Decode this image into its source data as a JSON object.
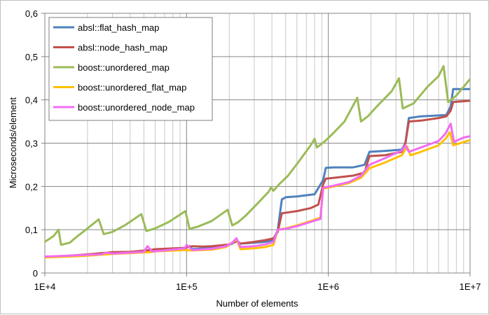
{
  "chart_data": {
    "type": "line",
    "title": "",
    "xlabel": "Number of elements",
    "ylabel": "Microseconds/element",
    "xscale": "log",
    "xlim": [
      10000,
      10000000
    ],
    "ylim": [
      0,
      0.6
    ],
    "grid": true,
    "legend_position": "top-left",
    "x_tick_labels": [
      "1E+4",
      "1E+5",
      "1E+6",
      "1E+7"
    ],
    "y_tick_labels": [
      "0",
      "0,1",
      "0,2",
      "0,3",
      "0,4",
      "0,5",
      "0,6"
    ],
    "series": [
      {
        "name": "absl::flat_hash_map",
        "color": "#4f81bd",
        "points": [
          [
            10000,
            0.037
          ],
          [
            15000,
            0.04
          ],
          [
            20000,
            0.042
          ],
          [
            30000,
            0.046
          ],
          [
            40000,
            0.047
          ],
          [
            55000,
            0.052
          ],
          [
            60000,
            0.054
          ],
          [
            70000,
            0.055
          ],
          [
            80000,
            0.056
          ],
          [
            97000,
            0.057
          ],
          [
            105000,
            0.062
          ],
          [
            110000,
            0.055
          ],
          [
            150000,
            0.058
          ],
          [
            190000,
            0.062
          ],
          [
            210000,
            0.068
          ],
          [
            225000,
            0.075
          ],
          [
            240000,
            0.068
          ],
          [
            300000,
            0.07
          ],
          [
            360000,
            0.072
          ],
          [
            410000,
            0.076
          ],
          [
            440000,
            0.1
          ],
          [
            470000,
            0.17
          ],
          [
            500000,
            0.175
          ],
          [
            600000,
            0.177
          ],
          [
            800000,
            0.182
          ],
          [
            920000,
            0.215
          ],
          [
            960000,
            0.243
          ],
          [
            1100000,
            0.244
          ],
          [
            1500000,
            0.244
          ],
          [
            1800000,
            0.25
          ],
          [
            1950000,
            0.28
          ],
          [
            2500000,
            0.282
          ],
          [
            3300000,
            0.285
          ],
          [
            3500000,
            0.3
          ],
          [
            3700000,
            0.358
          ],
          [
            4500000,
            0.362
          ],
          [
            6800000,
            0.365
          ],
          [
            7300000,
            0.385
          ],
          [
            7600000,
            0.425
          ],
          [
            10000000,
            0.425
          ]
        ]
      },
      {
        "name": "absl::node_hash_map",
        "color": "#c0504d",
        "points": [
          [
            10000,
            0.037
          ],
          [
            15000,
            0.04
          ],
          [
            20000,
            0.043
          ],
          [
            30000,
            0.048
          ],
          [
            40000,
            0.049
          ],
          [
            55000,
            0.053
          ],
          [
            60000,
            0.055
          ],
          [
            70000,
            0.056
          ],
          [
            97000,
            0.058
          ],
          [
            110000,
            0.062
          ],
          [
            130000,
            0.061
          ],
          [
            150000,
            0.062
          ],
          [
            200000,
            0.066
          ],
          [
            225000,
            0.073
          ],
          [
            240000,
            0.068
          ],
          [
            300000,
            0.072
          ],
          [
            360000,
            0.076
          ],
          [
            410000,
            0.08
          ],
          [
            440000,
            0.095
          ],
          [
            470000,
            0.138
          ],
          [
            600000,
            0.143
          ],
          [
            750000,
            0.15
          ],
          [
            850000,
            0.158
          ],
          [
            920000,
            0.205
          ],
          [
            960000,
            0.218
          ],
          [
            1100000,
            0.22
          ],
          [
            1500000,
            0.225
          ],
          [
            1800000,
            0.232
          ],
          [
            1950000,
            0.27
          ],
          [
            2500000,
            0.272
          ],
          [
            3300000,
            0.28
          ],
          [
            3500000,
            0.3
          ],
          [
            3700000,
            0.35
          ],
          [
            4500000,
            0.352
          ],
          [
            6000000,
            0.358
          ],
          [
            6800000,
            0.362
          ],
          [
            7300000,
            0.375
          ],
          [
            7600000,
            0.395
          ],
          [
            10000000,
            0.398
          ]
        ]
      },
      {
        "name": "boost::unordered_map",
        "color": "#9bbb59",
        "points": [
          [
            10000,
            0.072
          ],
          [
            11500,
            0.085
          ],
          [
            12500,
            0.1
          ],
          [
            13000,
            0.065
          ],
          [
            15000,
            0.07
          ],
          [
            17000,
            0.085
          ],
          [
            20000,
            0.103
          ],
          [
            24000,
            0.124
          ],
          [
            26000,
            0.09
          ],
          [
            30000,
            0.095
          ],
          [
            37000,
            0.111
          ],
          [
            48000,
            0.136
          ],
          [
            52000,
            0.097
          ],
          [
            60000,
            0.103
          ],
          [
            75000,
            0.118
          ],
          [
            98000,
            0.143
          ],
          [
            105000,
            0.102
          ],
          [
            120000,
            0.107
          ],
          [
            150000,
            0.12
          ],
          [
            195000,
            0.146
          ],
          [
            210000,
            0.11
          ],
          [
            230000,
            0.117
          ],
          [
            260000,
            0.132
          ],
          [
            320000,
            0.162
          ],
          [
            380000,
            0.188
          ],
          [
            395000,
            0.198
          ],
          [
            410000,
            0.19
          ],
          [
            450000,
            0.205
          ],
          [
            520000,
            0.225
          ],
          [
            620000,
            0.258
          ],
          [
            750000,
            0.295
          ],
          [
            800000,
            0.31
          ],
          [
            830000,
            0.29
          ],
          [
            950000,
            0.305
          ],
          [
            1100000,
            0.325
          ],
          [
            1300000,
            0.35
          ],
          [
            1600000,
            0.405
          ],
          [
            1700000,
            0.35
          ],
          [
            1900000,
            0.362
          ],
          [
            2200000,
            0.385
          ],
          [
            2800000,
            0.42
          ],
          [
            3150000,
            0.45
          ],
          [
            3350000,
            0.38
          ],
          [
            4000000,
            0.392
          ],
          [
            5000000,
            0.43
          ],
          [
            6000000,
            0.455
          ],
          [
            6500000,
            0.478
          ],
          [
            7000000,
            0.395
          ],
          [
            8000000,
            0.41
          ],
          [
            9000000,
            0.43
          ],
          [
            10000000,
            0.448
          ]
        ]
      },
      {
        "name": "boost::unordered_flat_map",
        "color": "#ffc000",
        "points": [
          [
            10000,
            0.036
          ],
          [
            15000,
            0.038
          ],
          [
            20000,
            0.04
          ],
          [
            30000,
            0.044
          ],
          [
            40000,
            0.046
          ],
          [
            55000,
            0.048
          ],
          [
            60000,
            0.05
          ],
          [
            70000,
            0.051
          ],
          [
            97000,
            0.053
          ],
          [
            110000,
            0.052
          ],
          [
            150000,
            0.054
          ],
          [
            190000,
            0.06
          ],
          [
            210000,
            0.07
          ],
          [
            225000,
            0.078
          ],
          [
            240000,
            0.055
          ],
          [
            300000,
            0.057
          ],
          [
            360000,
            0.06
          ],
          [
            410000,
            0.065
          ],
          [
            440000,
            0.1
          ],
          [
            500000,
            0.103
          ],
          [
            600000,
            0.11
          ],
          [
            750000,
            0.12
          ],
          [
            880000,
            0.128
          ],
          [
            920000,
            0.195
          ],
          [
            1100000,
            0.2
          ],
          [
            1400000,
            0.208
          ],
          [
            1700000,
            0.22
          ],
          [
            1950000,
            0.242
          ],
          [
            2500000,
            0.255
          ],
          [
            3300000,
            0.272
          ],
          [
            3600000,
            0.292
          ],
          [
            3800000,
            0.272
          ],
          [
            4500000,
            0.28
          ],
          [
            6000000,
            0.295
          ],
          [
            6700000,
            0.31
          ],
          [
            7200000,
            0.325
          ],
          [
            7600000,
            0.295
          ],
          [
            10000000,
            0.307
          ]
        ]
      },
      {
        "name": "boost::unordered_node_map",
        "color": "#f26cf2",
        "points": [
          [
            10000,
            0.038
          ],
          [
            15000,
            0.04
          ],
          [
            20000,
            0.042
          ],
          [
            25000,
            0.043
          ],
          [
            27000,
            0.047
          ],
          [
            30000,
            0.045
          ],
          [
            40000,
            0.047
          ],
          [
            50000,
            0.049
          ],
          [
            53000,
            0.062
          ],
          [
            57000,
            0.05
          ],
          [
            70000,
            0.052
          ],
          [
            97000,
            0.057
          ],
          [
            100000,
            0.065
          ],
          [
            110000,
            0.053
          ],
          [
            150000,
            0.056
          ],
          [
            190000,
            0.062
          ],
          [
            210000,
            0.07
          ],
          [
            225000,
            0.08
          ],
          [
            240000,
            0.06
          ],
          [
            300000,
            0.062
          ],
          [
            360000,
            0.066
          ],
          [
            410000,
            0.072
          ],
          [
            440000,
            0.1
          ],
          [
            500000,
            0.102
          ],
          [
            600000,
            0.108
          ],
          [
            750000,
            0.118
          ],
          [
            880000,
            0.125
          ],
          [
            920000,
            0.197
          ],
          [
            1100000,
            0.202
          ],
          [
            1400000,
            0.21
          ],
          [
            1700000,
            0.225
          ],
          [
            1950000,
            0.25
          ],
          [
            2500000,
            0.265
          ],
          [
            3300000,
            0.283
          ],
          [
            3500000,
            0.295
          ],
          [
            3700000,
            0.28
          ],
          [
            4500000,
            0.29
          ],
          [
            6000000,
            0.305
          ],
          [
            6700000,
            0.322
          ],
          [
            7300000,
            0.345
          ],
          [
            7700000,
            0.303
          ],
          [
            9000000,
            0.313
          ],
          [
            10000000,
            0.316
          ]
        ]
      }
    ]
  }
}
